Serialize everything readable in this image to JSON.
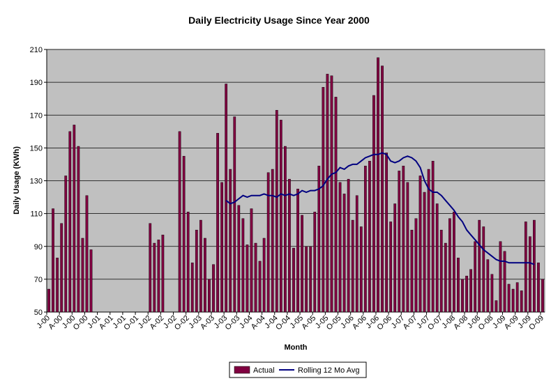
{
  "chart_data": {
    "type": "bar",
    "title": "Daily Electricity Usage Since Year 2000",
    "xlabel": "Month",
    "ylabel": "Daily Usage (KWh)",
    "ylim": [
      50,
      210
    ],
    "yticks": [
      50,
      70,
      90,
      110,
      130,
      150,
      170,
      190,
      210
    ],
    "grid": true,
    "legend_position": "bottom",
    "colors": {
      "plot_background": "#c0c0c0",
      "bar": "#800040",
      "line": "#000080",
      "gridline": "#000000"
    },
    "x_tick_labels": [
      "J-00",
      "A-00",
      "J-00",
      "O-00",
      "J-01",
      "A-01",
      "J-01",
      "O-01",
      "J-02",
      "A-02",
      "J-02",
      "O-02",
      "J-03",
      "A-03",
      "J-03",
      "O-03",
      "J-04",
      "A-04",
      "J-04",
      "O-04",
      "J-05",
      "A-05",
      "J-05",
      "O-05",
      "J-06",
      "A-06",
      "J-06",
      "O-06",
      "J-07",
      "A-07",
      "J-07",
      "O-07",
      "J-08",
      "A-08",
      "J-08",
      "O-08",
      "J-09",
      "A-09",
      "J-09",
      "O-09"
    ],
    "series": [
      {
        "name": "Actual",
        "kind": "bar",
        "values": [
          64,
          113,
          83,
          104,
          133,
          160,
          164,
          151,
          95,
          121,
          88,
          null,
          null,
          null,
          null,
          null,
          null,
          null,
          null,
          null,
          null,
          null,
          null,
          null,
          104,
          92,
          94,
          97,
          null,
          null,
          null,
          160,
          145,
          111,
          80,
          100,
          106,
          95,
          70,
          79,
          159,
          129,
          189,
          137,
          169,
          115,
          107,
          91,
          113,
          92,
          81,
          95,
          135,
          137,
          173,
          167,
          151,
          131,
          89,
          125,
          109,
          90,
          90,
          111,
          139,
          187,
          195,
          194,
          181,
          129,
          122,
          131,
          106,
          121,
          102,
          139,
          142,
          182,
          205,
          200,
          147,
          105,
          116,
          136,
          139,
          129,
          100,
          107,
          133,
          123,
          137,
          142,
          116,
          100,
          92,
          107,
          111,
          83,
          70,
          72,
          76,
          93,
          106,
          102,
          82,
          73,
          57,
          93,
          87,
          67,
          64,
          68,
          63,
          105,
          96,
          106,
          80,
          70
        ]
      },
      {
        "name": "Rolling 12 Mo Avg",
        "kind": "line",
        "values": [
          null,
          null,
          null,
          null,
          null,
          null,
          null,
          null,
          null,
          null,
          null,
          null,
          null,
          null,
          null,
          null,
          null,
          null,
          null,
          null,
          null,
          null,
          null,
          null,
          null,
          null,
          null,
          null,
          null,
          null,
          null,
          null,
          null,
          null,
          null,
          null,
          null,
          null,
          null,
          null,
          null,
          null,
          118,
          116,
          117,
          119,
          121,
          120,
          121,
          121,
          121,
          122,
          121,
          121,
          120,
          122,
          121,
          122,
          121,
          122,
          124,
          123,
          124,
          124,
          125,
          127,
          131,
          134,
          135,
          138,
          137,
          139,
          140,
          140,
          142,
          144,
          145,
          146,
          146,
          147,
          146,
          142,
          141,
          142,
          144,
          145,
          144,
          142,
          138,
          130,
          125,
          123,
          123,
          121,
          118,
          115,
          112,
          108,
          105,
          100,
          97,
          94,
          91,
          88,
          86,
          84,
          82,
          81,
          81,
          80,
          80,
          80,
          80,
          80,
          80,
          79
        ]
      }
    ]
  }
}
